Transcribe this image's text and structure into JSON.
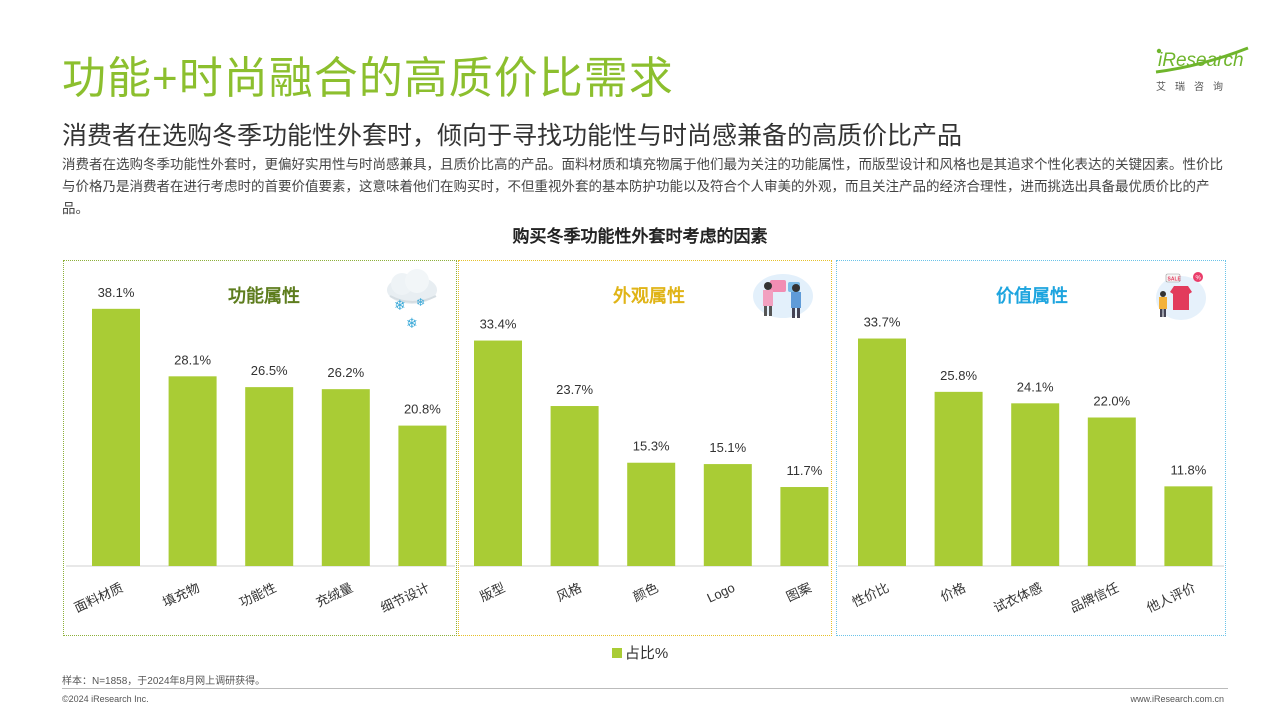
{
  "header": {
    "title": "功能+时尚融合的高质价比需求",
    "subtitle": "消费者在选购冬季功能性外套时，倾向于寻找功能性与时尚感兼备的高质价比产品",
    "description": "消费者在选购冬季功能性外套时，更偏好实用性与时尚感兼具，且质价比高的产品。面料材质和填充物属于他们最为关注的功能属性，而版型设计和风格也是其追求个性化表达的关键因素。性价比与价格乃是消费者在进行考虑时的首要价值要素，这意味着他们在购买时，不但重视外套的基本防护功能以及符合个人审美的外观，而且关注产品的经济合理性，进而挑选出具备最优质价比的产品。"
  },
  "logo": {
    "brand": "iResearch",
    "brand_cn": "艾瑞咨询"
  },
  "chart_data": {
    "type": "bar",
    "title": "购买冬季功能性外套时考虑的因素",
    "series": [
      {
        "name": "占比%",
        "color": "#a9cc35",
        "groups": [
          {
            "name": "功能属性",
            "color": "#5e7d1e",
            "icon": "snow-cloud-icon",
            "categories": [
              "面料材质",
              "填充物",
              "功能性",
              "充绒量",
              "细节设计"
            ],
            "values": [
              38.1,
              28.1,
              26.5,
              26.2,
              20.8
            ]
          },
          {
            "name": "外观属性",
            "color": "#e0b417",
            "icon": "shopping-people-icon",
            "categories": [
              "版型",
              "风格",
              "颜色",
              "Logo",
              "图案"
            ],
            "values": [
              33.4,
              23.7,
              15.3,
              15.1,
              11.7
            ]
          },
          {
            "name": "价值属性",
            "color": "#1ea5df",
            "icon": "sale-tag-icon",
            "categories": [
              "性价比",
              "价格",
              "试衣体感",
              "品牌信任",
              "他人评价"
            ],
            "values": [
              33.7,
              25.8,
              24.1,
              22.0,
              11.8
            ]
          }
        ]
      }
    ],
    "value_suffix": "%",
    "legend": {
      "label": "占比%",
      "placement": "bottom-center"
    },
    "ylim": [
      0,
      40
    ],
    "grid": false
  },
  "footer": {
    "note": "样本：N=1858，于2024年8月网上调研获得。",
    "copyright": "©2024 iResearch Inc.",
    "site": "www.iResearch.com.cn"
  }
}
